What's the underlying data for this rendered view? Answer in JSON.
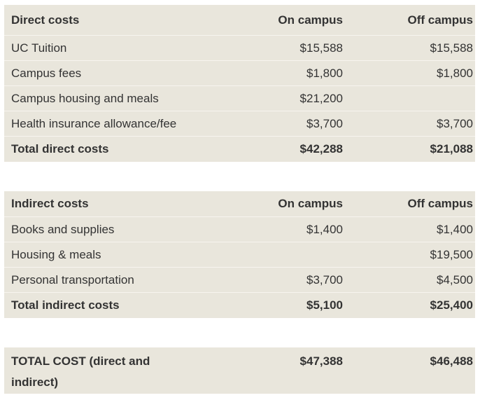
{
  "direct": {
    "header": {
      "label": "Direct costs",
      "on": "On campus",
      "off": "Off campus"
    },
    "rows": [
      {
        "label": "UC Tuition",
        "on": "$15,588",
        "off": "$15,588"
      },
      {
        "label": "Campus fees",
        "on": "$1,800",
        "off": "$1,800"
      },
      {
        "label": "Campus housing and meals",
        "on": "$21,200",
        "off": ""
      },
      {
        "label": "Health insurance allowance/fee",
        "on": "$3,700",
        "off": "$3,700"
      }
    ],
    "total": {
      "label": "Total direct costs",
      "on": "$42,288",
      "off": "$21,088"
    }
  },
  "indirect": {
    "header": {
      "label": "Indirect costs",
      "on": "On campus",
      "off": "Off campus"
    },
    "rows": [
      {
        "label": "Books and supplies",
        "on": "$1,400",
        "off": "$1,400"
      },
      {
        "label": "Housing & meals",
        "on": "",
        "off": "$19,500"
      },
      {
        "label": "Personal transportation",
        "on": "$3,700",
        "off": "$4,500"
      }
    ],
    "total": {
      "label": "Total indirect costs",
      "on": "$5,100",
      "off": "$25,400"
    }
  },
  "grand_total": {
    "label": "TOTAL COST (direct and indirect)",
    "on": "$47,388",
    "off": "$46,488"
  },
  "colors": {
    "table_bg": "#e9e6dc",
    "text": "#333333"
  }
}
